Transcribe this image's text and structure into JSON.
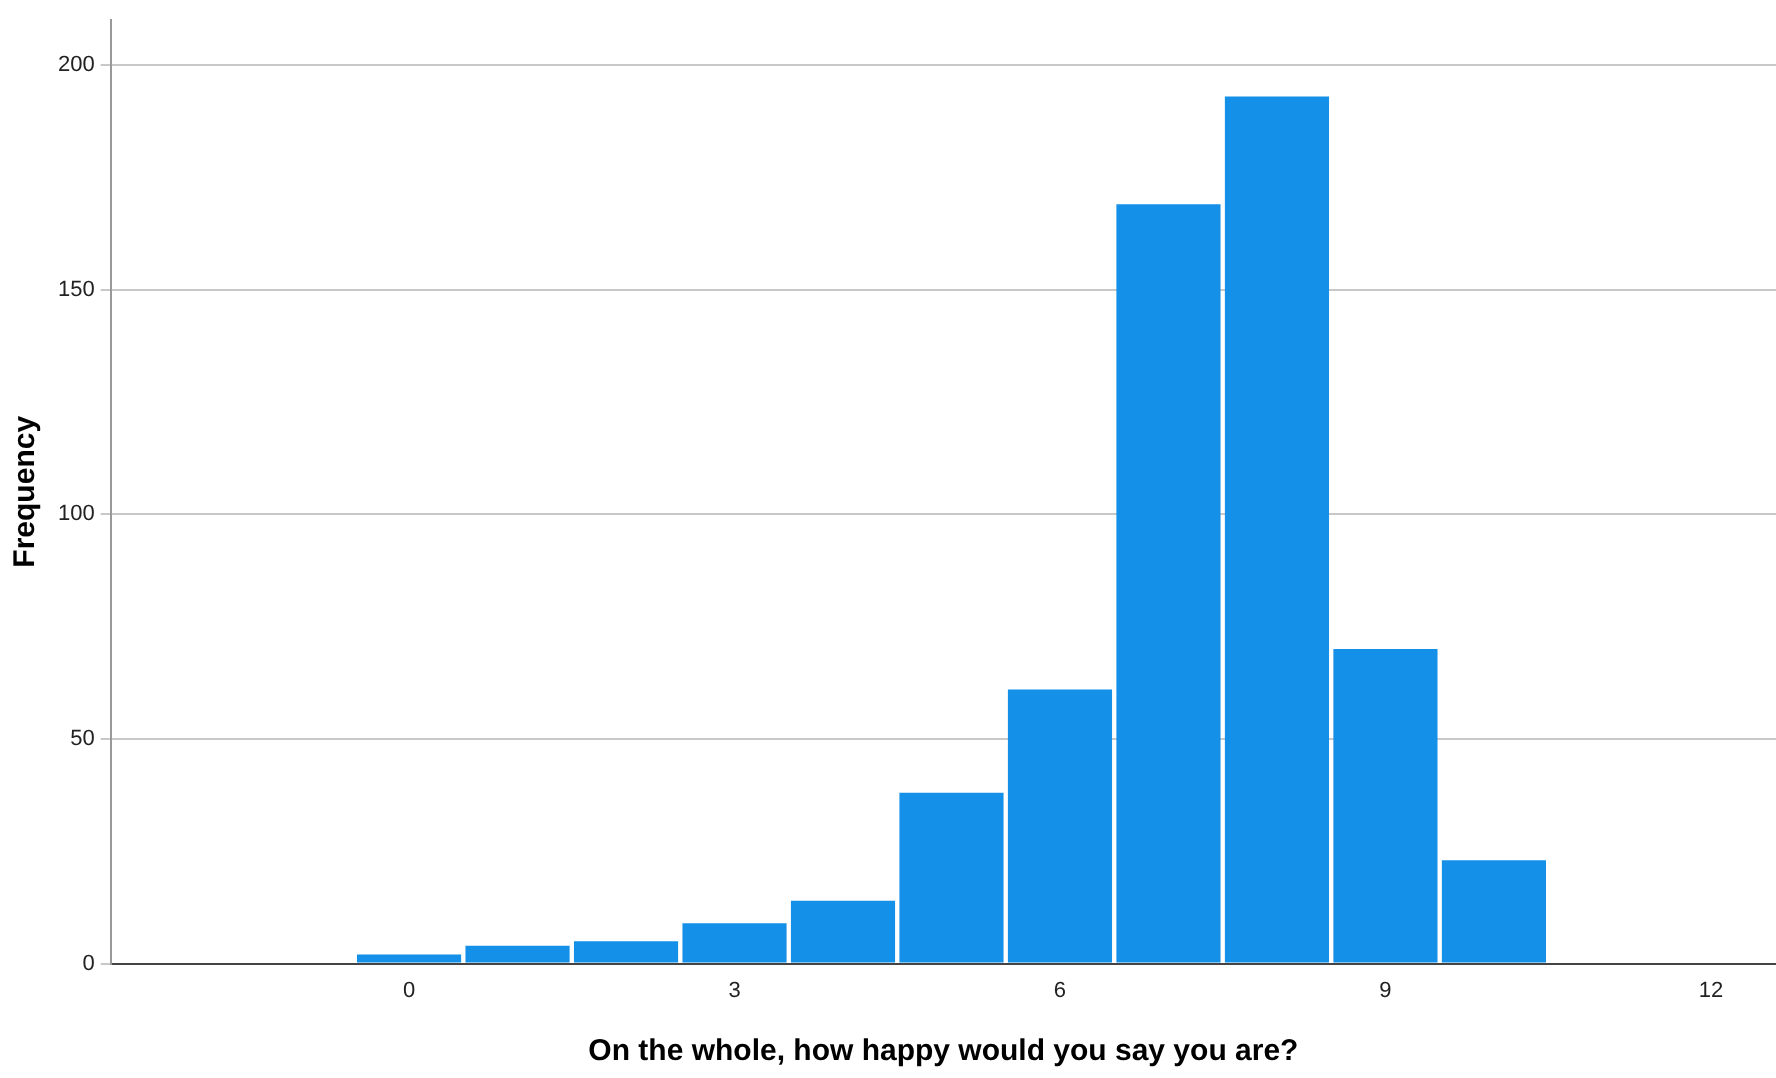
{
  "chart_data": {
    "type": "histogram",
    "xlabel": "On the whole, how happy would you say you are?",
    "ylabel": "Frequency",
    "bins": [
      -0.5,
      0.5,
      1.5,
      2.5,
      3.5,
      4.5,
      5.5,
      6.5,
      7.5,
      8.5,
      9.5,
      10.5
    ],
    "values": [
      2,
      4,
      5,
      9,
      14,
      38,
      61,
      169,
      193,
      70,
      23
    ],
    "color": "#1490e8",
    "xlim": [
      -2.75,
      12.6
    ],
    "xticks": [
      0,
      3,
      6,
      9,
      12
    ],
    "ylim": [
      0,
      210
    ],
    "yticks": [
      0,
      50,
      100,
      150,
      200
    ],
    "grid": "y"
  }
}
